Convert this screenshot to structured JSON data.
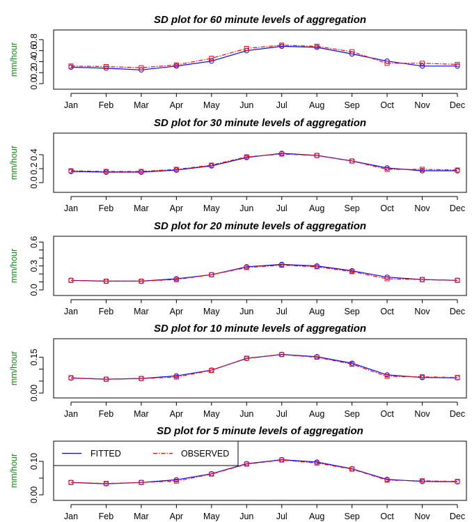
{
  "chart_data": [
    {
      "type": "line",
      "title": "SD plot for 60 minute levels of aggregation",
      "xlabel": "",
      "ylabel": "mm/hour",
      "categories": [
        "Jan",
        "Feb",
        "Mar",
        "Apr",
        "May",
        "Jun",
        "Jul",
        "Aug",
        "Sep",
        "Oct",
        "Nov",
        "Dec"
      ],
      "ylim": [
        0,
        0.9
      ],
      "yticks": [
        "0.0",
        "0.2",
        "0.4",
        "0.6",
        "0.8"
      ],
      "ytick_values": [
        0,
        0.2,
        0.4,
        0.6,
        0.8
      ],
      "series": [
        {
          "name": "FITTED",
          "values": [
            0.3,
            0.28,
            0.25,
            0.32,
            0.41,
            0.6,
            0.68,
            0.66,
            0.54,
            0.41,
            0.32,
            0.32
          ]
        },
        {
          "name": "OBSERVED",
          "values": [
            0.32,
            0.31,
            0.29,
            0.34,
            0.46,
            0.64,
            0.7,
            0.68,
            0.58,
            0.37,
            0.37,
            0.35
          ]
        }
      ]
    },
    {
      "type": "line",
      "title": "SD plot for 30 minute levels of aggregation",
      "xlabel": "",
      "ylabel": "mm/hour",
      "categories": [
        "Jan",
        "Feb",
        "Mar",
        "Apr",
        "May",
        "Jun",
        "Jul",
        "Aug",
        "Sep",
        "Oct",
        "Nov",
        "Dec"
      ],
      "ylim": [
        0,
        0.65
      ],
      "yticks": [
        "0.0",
        "0.2",
        "0.4"
      ],
      "ytick_values": [
        0,
        0.2,
        0.4
      ],
      "series": [
        {
          "name": "FITTED",
          "values": [
            0.16,
            0.15,
            0.15,
            0.18,
            0.24,
            0.36,
            0.42,
            0.39,
            0.31,
            0.21,
            0.17,
            0.17
          ]
        },
        {
          "name": "OBSERVED",
          "values": [
            0.17,
            0.16,
            0.16,
            0.19,
            0.25,
            0.37,
            0.41,
            0.39,
            0.31,
            0.19,
            0.19,
            0.18
          ]
        }
      ]
    },
    {
      "type": "line",
      "title": "SD plot for 20 minute levels of aggregation",
      "xlabel": "",
      "ylabel": "mm/hour",
      "categories": [
        "Jan",
        "Feb",
        "Mar",
        "Apr",
        "May",
        "Jun",
        "Jul",
        "Aug",
        "Sep",
        "Oct",
        "Nov",
        "Dec"
      ],
      "ylim": [
        0,
        0.62
      ],
      "yticks": [
        "0.0",
        "0.3",
        "0.6"
      ],
      "ytick_values": [
        0,
        0.3,
        0.6
      ],
      "yminorticks": [
        0.1,
        0.2,
        0.4,
        0.5
      ],
      "series": [
        {
          "name": "FITTED",
          "values": [
            0.12,
            0.11,
            0.11,
            0.14,
            0.19,
            0.29,
            0.32,
            0.3,
            0.24,
            0.16,
            0.13,
            0.12
          ]
        },
        {
          "name": "OBSERVED",
          "values": [
            0.12,
            0.11,
            0.11,
            0.13,
            0.19,
            0.28,
            0.31,
            0.29,
            0.23,
            0.14,
            0.13,
            0.12
          ]
        }
      ]
    },
    {
      "type": "line",
      "title": "SD plot for 10 minute levels of aggregation",
      "xlabel": "",
      "ylabel": "mm/hour",
      "categories": [
        "Jan",
        "Feb",
        "Mar",
        "Apr",
        "May",
        "Jun",
        "Jul",
        "Aug",
        "Sep",
        "Oct",
        "Nov",
        "Dec"
      ],
      "ylim": [
        0,
        0.21
      ],
      "yticks": [
        "0.00",
        "0.15"
      ],
      "ytick_values": [
        0,
        0.15
      ],
      "yminorticks": [
        0.05,
        0.1
      ],
      "series": [
        {
          "name": "FITTED",
          "values": [
            0.063,
            0.058,
            0.061,
            0.072,
            0.096,
            0.145,
            0.162,
            0.152,
            0.125,
            0.076,
            0.065,
            0.064
          ]
        },
        {
          "name": "OBSERVED",
          "values": [
            0.064,
            0.058,
            0.061,
            0.067,
            0.095,
            0.146,
            0.161,
            0.15,
            0.121,
            0.07,
            0.068,
            0.065
          ]
        }
      ]
    },
    {
      "type": "line",
      "title": "SD plot for 5 minute levels of aggregation",
      "xlabel": "",
      "ylabel": "mm/hour",
      "categories": [
        "Jan",
        "Feb",
        "Mar",
        "Apr",
        "May",
        "Jun",
        "Jul",
        "Aug",
        "Sep",
        "Oct",
        "Nov",
        "Dec"
      ],
      "ylim": [
        0,
        0.148
      ],
      "yticks": [
        "0.00",
        "0.10"
      ],
      "ytick_values": [
        0,
        0.1
      ],
      "yminorticks": [
        0.05
      ],
      "legend": {
        "placement": "top-left",
        "entries": [
          "FITTED",
          "OBSERVED"
        ]
      },
      "series": [
        {
          "name": "FITTED",
          "values": [
            0.037,
            0.033,
            0.037,
            0.045,
            0.063,
            0.093,
            0.105,
            0.098,
            0.078,
            0.046,
            0.04,
            0.039
          ]
        },
        {
          "name": "OBSERVED",
          "values": [
            0.037,
            0.034,
            0.037,
            0.041,
            0.062,
            0.092,
            0.104,
            0.095,
            0.077,
            0.044,
            0.042,
            0.04
          ]
        }
      ]
    }
  ],
  "colors": {
    "fitted": "#0000ff",
    "observed": "#ff0000",
    "ylabel": "#1a8a1a"
  }
}
